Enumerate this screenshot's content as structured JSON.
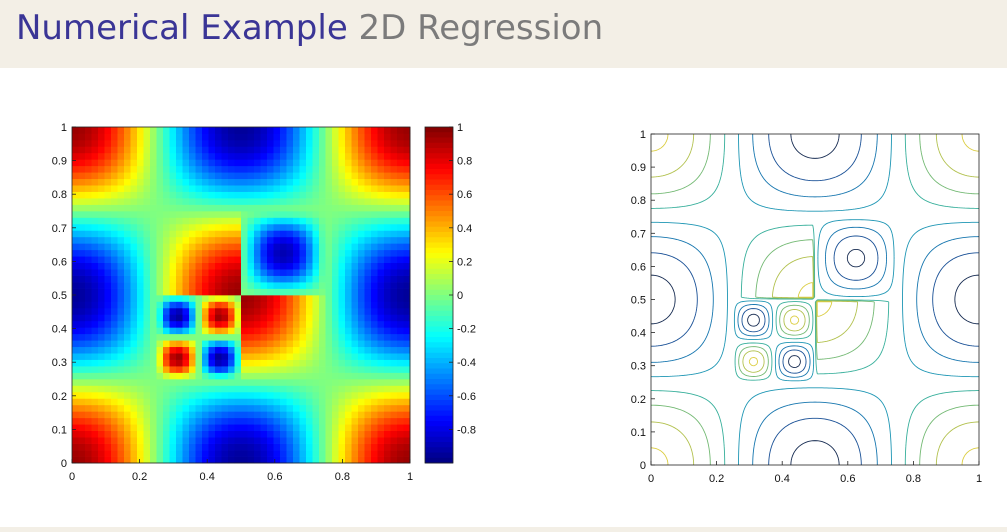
{
  "header": {
    "title_main": "Numerical Example",
    "title_sub": "2D Regression"
  },
  "colors": {
    "title_main": "#3a3596",
    "title_sub": "#7b7b7b",
    "header_bg": "#f3efe6"
  },
  "chart_data": [
    {
      "type": "heatmap",
      "title": "",
      "xlabel": "",
      "ylabel": "",
      "xlim": [
        0,
        1
      ],
      "ylim": [
        0,
        1
      ],
      "colormap": "jet",
      "color_range": [
        -1,
        1
      ],
      "x_ticks": [
        "0",
        "0.2",
        "0.4",
        "0.6",
        "0.8",
        "1"
      ],
      "y_ticks": [
        "0",
        "0.1",
        "0.2",
        "0.3",
        "0.4",
        "0.5",
        "0.6",
        "0.7",
        "0.8",
        "0.9",
        "1"
      ],
      "colorbar_ticks": [
        "1",
        "0.8",
        "0.6",
        "0.4",
        "0.2",
        "0",
        "-0.2",
        "-0.4",
        "-0.6",
        "-0.8"
      ],
      "field_description": "background cos(2πx)cos(2πy)-like pattern; 2x2 blobs in [0.5,0.75]^2; 4x4 blobs in [0.25,0.5]^2",
      "grid": false
    },
    {
      "type": "contour",
      "title": "",
      "xlabel": "",
      "ylabel": "",
      "xlim": [
        0,
        1
      ],
      "ylim": [
        0,
        1
      ],
      "x_ticks": [
        "0",
        "0.2",
        "0.4",
        "0.6",
        "0.8",
        "1"
      ],
      "y_ticks": [
        "0",
        "0.1",
        "0.2",
        "0.3",
        "0.4",
        "0.5",
        "0.6",
        "0.7",
        "0.8",
        "0.9",
        "1"
      ],
      "contour_levels": [
        -0.85,
        -0.6,
        -0.35,
        -0.1,
        0.15,
        0.4,
        0.65,
        0.9
      ],
      "grid": false
    }
  ]
}
